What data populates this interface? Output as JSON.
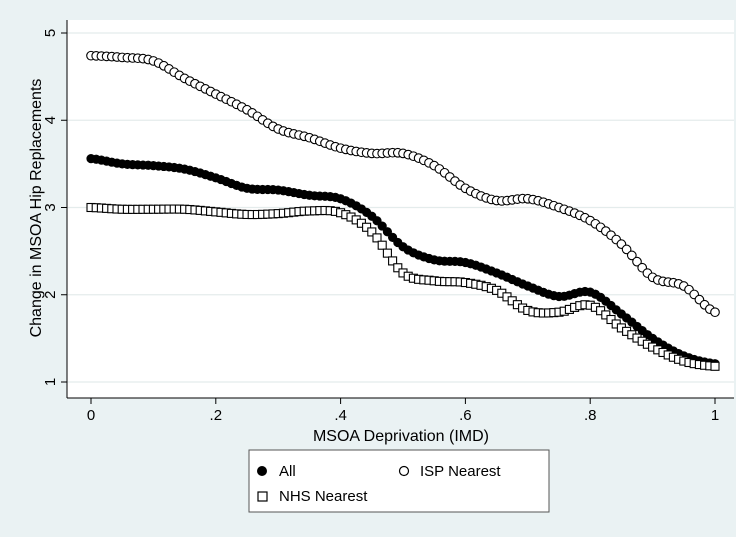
{
  "chart_data": {
    "type": "scatter",
    "title": "",
    "xlabel": "MSOA Deprivation (IMD)",
    "ylabel": "Change in MSOA Hip Replacements",
    "xlim": [
      0,
      1
    ],
    "ylim": [
      1,
      5
    ],
    "x_ticks": [
      "0",
      ".2",
      ".4",
      ".6",
      ".8",
      "1"
    ],
    "x_tick_values": [
      0,
      0.2,
      0.4,
      0.6,
      0.8,
      1
    ],
    "y_ticks": [
      "1",
      "2",
      "3",
      "4",
      "5"
    ],
    "y_tick_values": [
      1,
      2,
      3,
      4,
      5
    ],
    "grid": "horizontal",
    "legend_position": "bottom",
    "series": [
      {
        "name": "All",
        "marker": "filled-circle",
        "color": "#000000",
        "points": [
          [
            0,
            3.56
          ],
          [
            0.05,
            3.5
          ],
          [
            0.1,
            3.48
          ],
          [
            0.15,
            3.44
          ],
          [
            0.2,
            3.34
          ],
          [
            0.25,
            3.22
          ],
          [
            0.3,
            3.2
          ],
          [
            0.35,
            3.14
          ],
          [
            0.4,
            3.1
          ],
          [
            0.45,
            2.9
          ],
          [
            0.5,
            2.55
          ],
          [
            0.55,
            2.4
          ],
          [
            0.6,
            2.37
          ],
          [
            0.65,
            2.25
          ],
          [
            0.7,
            2.1
          ],
          [
            0.75,
            1.98
          ],
          [
            0.8,
            2.03
          ],
          [
            0.85,
            1.78
          ],
          [
            0.9,
            1.5
          ],
          [
            0.95,
            1.3
          ],
          [
            1,
            1.21
          ]
        ]
      },
      {
        "name": "ISP Nearest",
        "marker": "hollow-circle",
        "color": "#000000",
        "points": [
          [
            0,
            4.74
          ],
          [
            0.05,
            4.72
          ],
          [
            0.1,
            4.68
          ],
          [
            0.15,
            4.48
          ],
          [
            0.2,
            4.3
          ],
          [
            0.25,
            4.12
          ],
          [
            0.3,
            3.9
          ],
          [
            0.35,
            3.8
          ],
          [
            0.4,
            3.68
          ],
          [
            0.45,
            3.62
          ],
          [
            0.5,
            3.62
          ],
          [
            0.55,
            3.48
          ],
          [
            0.6,
            3.22
          ],
          [
            0.65,
            3.08
          ],
          [
            0.7,
            3.1
          ],
          [
            0.75,
            3.0
          ],
          [
            0.8,
            2.85
          ],
          [
            0.85,
            2.58
          ],
          [
            0.9,
            2.2
          ],
          [
            0.95,
            2.1
          ],
          [
            1,
            1.8
          ]
        ]
      },
      {
        "name": "NHS Nearest",
        "marker": "hollow-square",
        "color": "#000000",
        "points": [
          [
            0,
            3.0
          ],
          [
            0.05,
            2.98
          ],
          [
            0.1,
            2.98
          ],
          [
            0.15,
            2.98
          ],
          [
            0.2,
            2.95
          ],
          [
            0.25,
            2.92
          ],
          [
            0.3,
            2.93
          ],
          [
            0.35,
            2.96
          ],
          [
            0.4,
            2.94
          ],
          [
            0.45,
            2.72
          ],
          [
            0.5,
            2.25
          ],
          [
            0.55,
            2.16
          ],
          [
            0.6,
            2.14
          ],
          [
            0.65,
            2.05
          ],
          [
            0.7,
            1.82
          ],
          [
            0.75,
            1.8
          ],
          [
            0.8,
            1.88
          ],
          [
            0.85,
            1.62
          ],
          [
            0.9,
            1.4
          ],
          [
            0.95,
            1.24
          ],
          [
            1,
            1.18
          ]
        ]
      }
    ]
  }
}
